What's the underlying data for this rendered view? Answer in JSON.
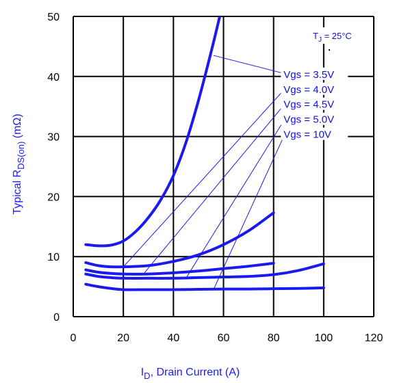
{
  "chart_data": {
    "type": "line",
    "xlabel_main": "I",
    "xlabel_sub": "D",
    "xlabel_rest": ", Drain Current (A)",
    "ylabel_main": "Typical R",
    "ylabel_sub": "DS(on)",
    "ylabel_rest": " (mΩ)",
    "xlim": [
      0,
      120
    ],
    "ylim": [
      0,
      50
    ],
    "xticks": [
      0,
      20,
      40,
      60,
      80,
      100,
      120
    ],
    "yticks": [
      0,
      10,
      20,
      30,
      40,
      50
    ],
    "grid": true,
    "annotation_main": "T",
    "annotation_sub": "J",
    "annotation_rest": " = 25°C",
    "series": [
      {
        "name": "Vgs = 3.5V",
        "points": [
          [
            5,
            12
          ],
          [
            10,
            11.8
          ],
          [
            15,
            11.9
          ],
          [
            20,
            12.6
          ],
          [
            25,
            14.2
          ],
          [
            30,
            16.5
          ],
          [
            35,
            19.5
          ],
          [
            40,
            23.5
          ],
          [
            45,
            29
          ],
          [
            50,
            36
          ],
          [
            55,
            44
          ],
          [
            58.5,
            50
          ]
        ],
        "leader_from": [
          56,
          43.5
        ],
        "label_anchor": [
          84,
          40
        ]
      },
      {
        "name": "Vgs = 4.0V",
        "points": [
          [
            5,
            9
          ],
          [
            10,
            8.5
          ],
          [
            15,
            8.3
          ],
          [
            20,
            8.3
          ],
          [
            30,
            8.5
          ],
          [
            40,
            9.2
          ],
          [
            50,
            10.3
          ],
          [
            60,
            12
          ],
          [
            70,
            14.3
          ],
          [
            80,
            17.3
          ]
        ],
        "leader_from": [
          20,
          8.3
        ],
        "label_anchor": [
          84,
          37.5
        ]
      },
      {
        "name": "Vgs = 4.5V",
        "points": [
          [
            5,
            7.8
          ],
          [
            10,
            7.4
          ],
          [
            15,
            7.2
          ],
          [
            20,
            7.1
          ],
          [
            30,
            7.1
          ],
          [
            40,
            7.3
          ],
          [
            50,
            7.6
          ],
          [
            60,
            8
          ],
          [
            70,
            8.4
          ],
          [
            80,
            8.9
          ]
        ],
        "leader_from": [
          28,
          7.1
        ],
        "label_anchor": [
          84,
          35
        ]
      },
      {
        "name": "Vgs = 5.0V",
        "points": [
          [
            5,
            7.1
          ],
          [
            10,
            6.7
          ],
          [
            15,
            6.5
          ],
          [
            20,
            6.4
          ],
          [
            30,
            6.4
          ],
          [
            40,
            6.4
          ],
          [
            50,
            6.5
          ],
          [
            60,
            6.6
          ],
          [
            70,
            6.7
          ],
          [
            80,
            7
          ],
          [
            90,
            7.7
          ],
          [
            100,
            8.8
          ]
        ],
        "leader_from": [
          45,
          6.4
        ],
        "label_anchor": [
          84,
          32.5
        ]
      },
      {
        "name": "Vgs = 10V",
        "points": [
          [
            5,
            5.4
          ],
          [
            10,
            5
          ],
          [
            15,
            4.7
          ],
          [
            20,
            4.5
          ],
          [
            30,
            4.5
          ],
          [
            40,
            4.5
          ],
          [
            50,
            4.55
          ],
          [
            60,
            4.6
          ],
          [
            70,
            4.6
          ],
          [
            80,
            4.65
          ],
          [
            90,
            4.7
          ],
          [
            100,
            4.8
          ]
        ],
        "leader_from": [
          56,
          4.5
        ],
        "label_anchor": [
          84,
          30
        ]
      }
    ],
    "colors": {
      "series": "#1a1aee",
      "leader": "#1a1aee",
      "grid": "#000000"
    }
  }
}
